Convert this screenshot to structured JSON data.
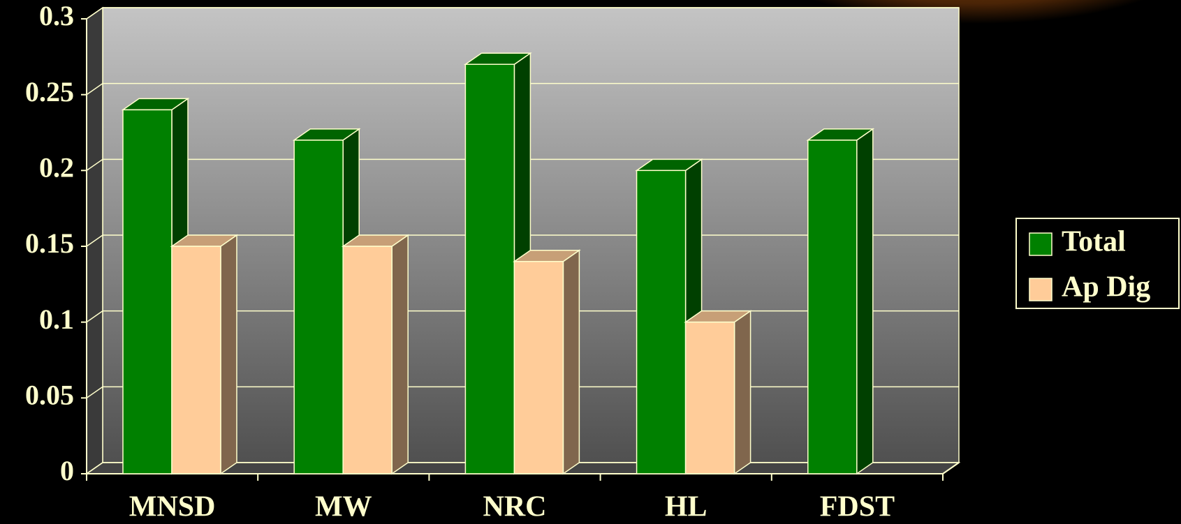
{
  "chart_data": {
    "type": "bar3d",
    "categories": [
      "MNSD",
      "MW",
      "NRC",
      "HL",
      "FDST"
    ],
    "series": [
      {
        "name": "Total",
        "color": "#008000",
        "values": [
          0.24,
          0.22,
          0.27,
          0.2,
          0.22
        ]
      },
      {
        "name": "Ap Dig",
        "color": "#ffcc99",
        "values": [
          0.15,
          0.15,
          0.14,
          0.1,
          null
        ]
      }
    ],
    "ylim": [
      0,
      0.3
    ],
    "yticks": [
      0,
      0.05,
      0.1,
      0.15,
      0.2,
      0.25,
      0.3
    ],
    "grid": true,
    "legend": "right"
  }
}
